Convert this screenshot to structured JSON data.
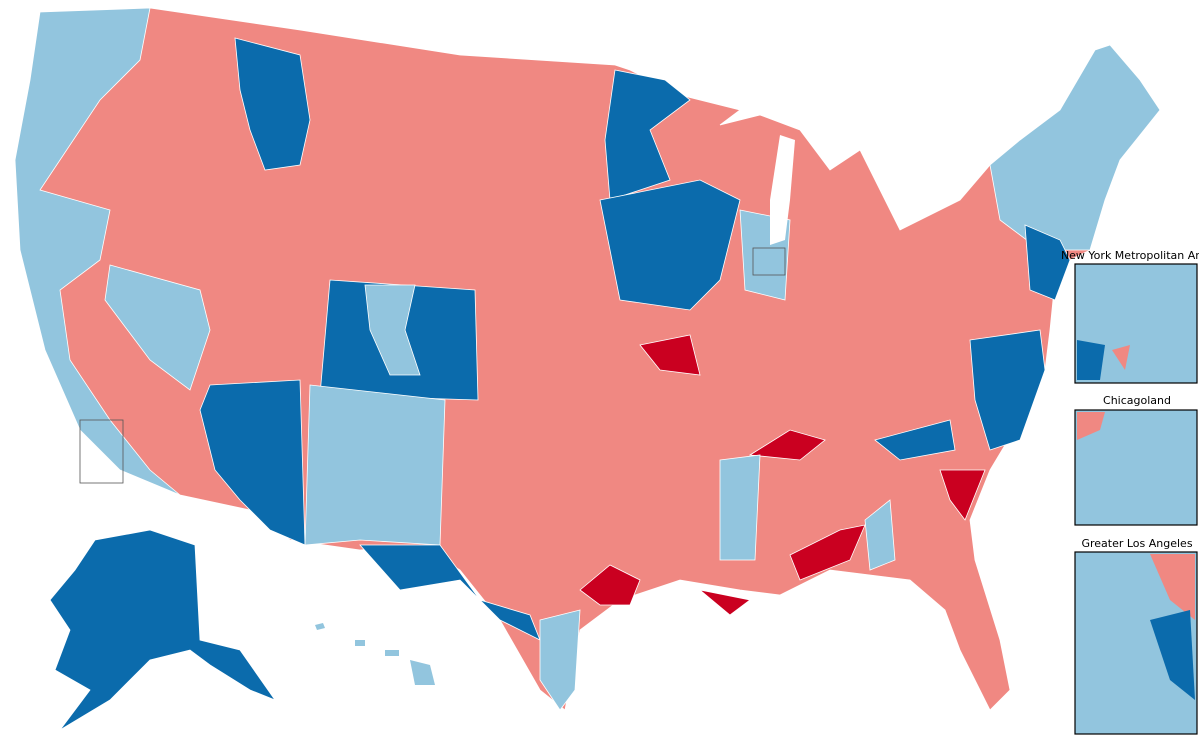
{
  "insets": [
    {
      "label": "New York Metropolitan Area"
    },
    {
      "label": "Chicagoland"
    },
    {
      "label": "Greater Los Angeles"
    }
  ]
}
